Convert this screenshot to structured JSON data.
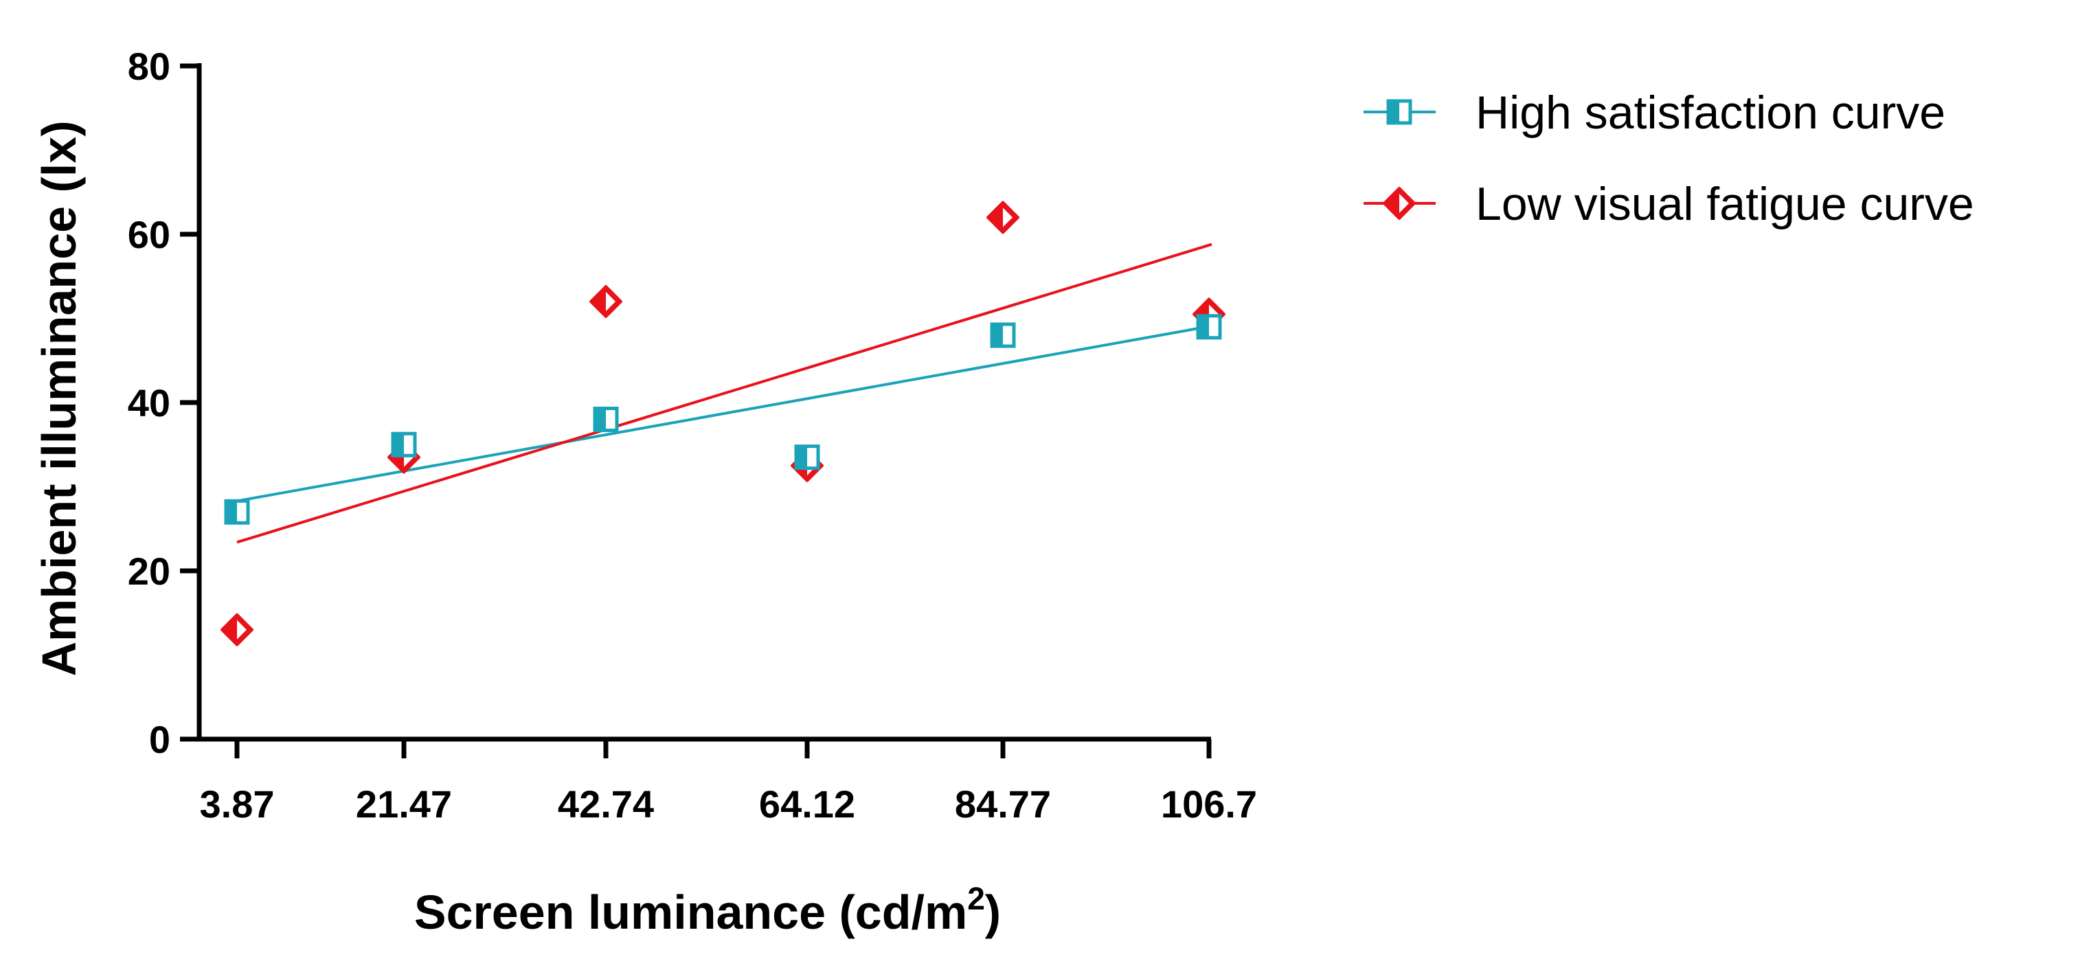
{
  "chart_data": {
    "type": "scatter",
    "title": "",
    "xlabel_main": "Screen luminance (cd/m",
    "xlabel_sup": "2",
    "xlabel_close": ")",
    "ylabel": "Ambient illuminance (lx)",
    "categories": [
      "3.87",
      "21.47",
      "42.74",
      "64.12",
      "84.77",
      "106.7"
    ],
    "ylim": [
      0,
      80
    ],
    "yticks": [
      0,
      20,
      40,
      60,
      80
    ],
    "legend_position": "top-right",
    "series": [
      {
        "name": "High satisfaction curve",
        "color": "#1ba3b8",
        "marker": "half-filled-square",
        "values": [
          27,
          35,
          38,
          33.5,
          48,
          49
        ],
        "trend": [
          28.3,
          49.1
        ]
      },
      {
        "name": "Low visual fatigue curve",
        "color": "#e8121b",
        "marker": "half-filled-diamond",
        "values": [
          13,
          33.5,
          52,
          32.5,
          62,
          50.5
        ],
        "trend": [
          23.4,
          58.8
        ]
      }
    ]
  }
}
